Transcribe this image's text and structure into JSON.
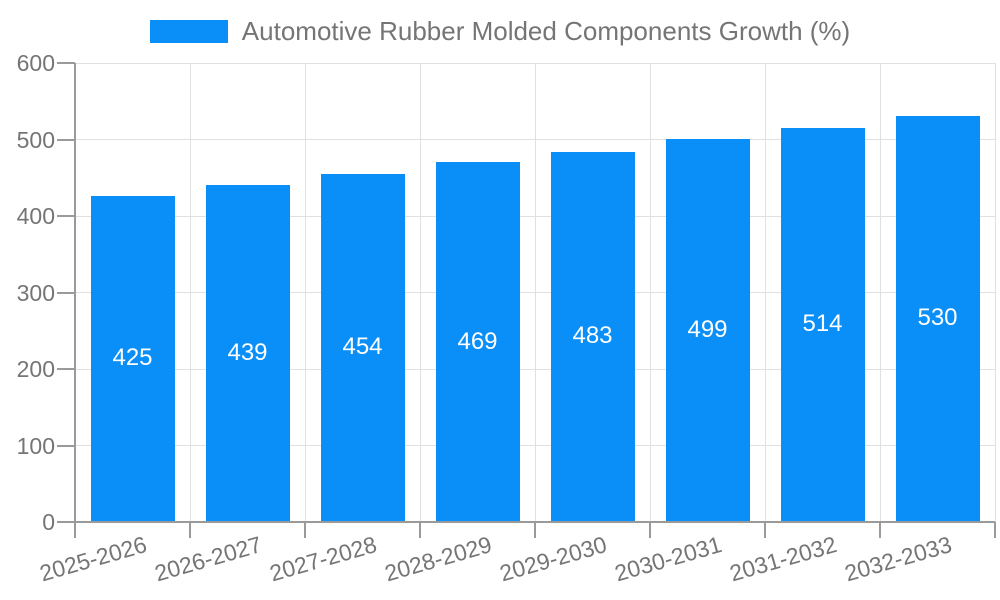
{
  "legend": {
    "label": "Automotive Rubber Molded Components Growth (%)"
  },
  "chart_data": {
    "type": "bar",
    "title": "Automotive Rubber Molded Components Growth (%)",
    "categories": [
      "2025-2026",
      "2026-2027",
      "2027-2028",
      "2028-2029",
      "2029-2030",
      "2030-2031",
      "2031-2032",
      "2032-2033"
    ],
    "values": [
      425,
      439,
      454,
      469,
      483,
      499,
      514,
      530
    ],
    "value_labels": [
      "425",
      "439",
      "454",
      "469",
      "483",
      "499",
      "514",
      "530"
    ],
    "xlabel": "",
    "ylabel": "",
    "ylim": [
      0,
      600
    ],
    "yticks": [
      "0",
      "100",
      "200",
      "300",
      "400",
      "500",
      "600"
    ],
    "grid": true,
    "legend_position": "top-center",
    "colors": {
      "bar": "#0a8ff9",
      "value_label": "#ffffff",
      "axis": "#9a9a9a",
      "gridline": "#e0e0e0",
      "tick_label": "#757575",
      "legend_text": "#757575"
    }
  }
}
